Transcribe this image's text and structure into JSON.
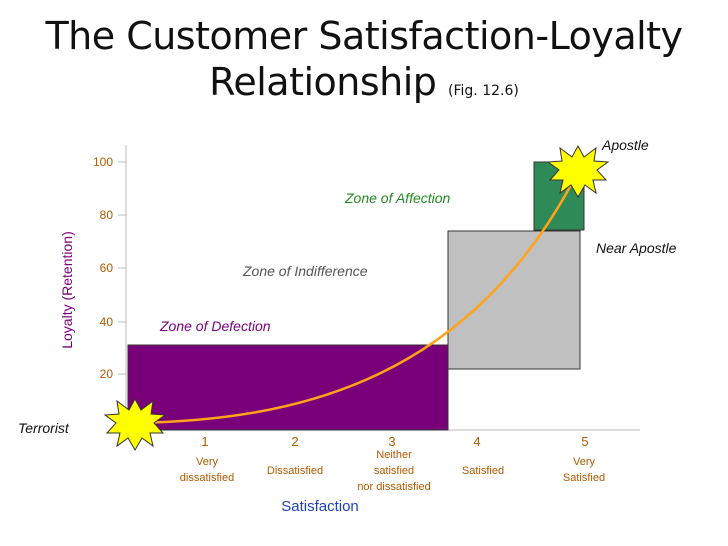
{
  "title": {
    "line1": "The Customer Satisfaction-Loyalty",
    "line2": "Relationship",
    "fig": "(Fig. 12.6)"
  },
  "y_axis": {
    "label": "Loyalty (Retention)",
    "ticks": [
      "100",
      "80",
      "60",
      "40",
      "20"
    ]
  },
  "x_axis": {
    "label": "Satisfaction",
    "ticks": [
      "1",
      "2",
      "3",
      "4",
      "5"
    ],
    "tick_descriptions": [
      [
        "Very",
        "dissatisfied"
      ],
      [
        "Dissatisfied"
      ],
      [
        "Neither",
        "satisfied",
        "nor dissatisfied"
      ],
      [
        "Satisfied"
      ],
      [
        "Very",
        "Satisfied"
      ]
    ]
  },
  "zones": {
    "affection": "Zone of Affection",
    "indifference": "Zone of Indifference",
    "defection": "Zone of Defection"
  },
  "labels": {
    "apostle": "Apostle",
    "near_apostle": "Near Apostle",
    "terrorist": "Terrorist"
  },
  "colors": {
    "axis_text": "#b35900",
    "defection_fill": "#7a007a",
    "indifference_fill": "#c0c0c0",
    "affection_fill": "#2e8b57",
    "curve": "#ffa31a",
    "burst": "#ffff00",
    "affection_text": "#228b22",
    "indifference_text": "#555555",
    "defection_text": "#7a007a",
    "satisfaction_label": "#1f3fbf"
  }
}
